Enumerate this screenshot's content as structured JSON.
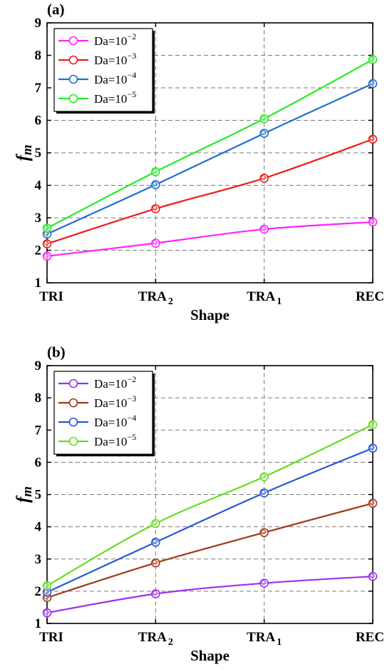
{
  "chart_data": [
    {
      "type": "line",
      "panel_label": "(a)",
      "xlabel": "Shape",
      "ylabel": "f",
      "ylabel_sub": "m",
      "categories": [
        "TRI",
        "TRA2",
        "TRA1",
        "REC"
      ],
      "category_labels": [
        {
          "main": "TRI",
          "sub": ""
        },
        {
          "main": "TRA",
          "sub": "2"
        },
        {
          "main": "TRA",
          "sub": "1"
        },
        {
          "main": "REC",
          "sub": ""
        }
      ],
      "ylim": [
        1,
        9
      ],
      "yticks": [
        1,
        2,
        3,
        4,
        5,
        6,
        7,
        8,
        9
      ],
      "grid": true,
      "legend_position": "top-left",
      "series": [
        {
          "name": "Da=10",
          "exp": "−2",
          "color": "#ff22ff",
          "values": [
            1.82,
            2.22,
            2.65,
            2.87
          ]
        },
        {
          "name": "Da=10",
          "exp": "−3",
          "color": "#ee1c1c",
          "values": [
            2.2,
            3.28,
            4.22,
            5.42
          ]
        },
        {
          "name": "Da=10",
          "exp": "−4",
          "color": "#1f6fd0",
          "values": [
            2.5,
            4.02,
            5.6,
            7.13
          ]
        },
        {
          "name": "Da=10",
          "exp": "−5",
          "color": "#22ee22",
          "values": [
            2.68,
            4.42,
            6.05,
            7.87
          ]
        }
      ]
    },
    {
      "type": "line",
      "panel_label": "(b)",
      "xlabel": "Shape",
      "ylabel": "f",
      "ylabel_sub": "m",
      "categories": [
        "TRI",
        "TRA2",
        "TRA1",
        "REC"
      ],
      "category_labels": [
        {
          "main": "TRI",
          "sub": ""
        },
        {
          "main": "TRA",
          "sub": "2"
        },
        {
          "main": "TRA",
          "sub": "1"
        },
        {
          "main": "REC",
          "sub": ""
        }
      ],
      "ylim": [
        1,
        9
      ],
      "yticks": [
        1,
        2,
        3,
        4,
        5,
        6,
        7,
        8,
        9
      ],
      "grid": true,
      "legend_position": "top-left",
      "series": [
        {
          "name": "Da=10",
          "exp": "−2",
          "color": "#9b30ee",
          "values": [
            1.33,
            1.92,
            2.25,
            2.46
          ]
        },
        {
          "name": "Da=10",
          "exp": "−3",
          "color": "#a0391a",
          "values": [
            1.8,
            2.88,
            3.82,
            4.73
          ]
        },
        {
          "name": "Da=10",
          "exp": "−4",
          "color": "#2a55d6",
          "values": [
            1.97,
            3.52,
            5.05,
            6.44
          ]
        },
        {
          "name": "Da=10",
          "exp": "−5",
          "color": "#66dd22",
          "values": [
            2.17,
            4.1,
            5.55,
            7.17
          ]
        }
      ]
    }
  ]
}
